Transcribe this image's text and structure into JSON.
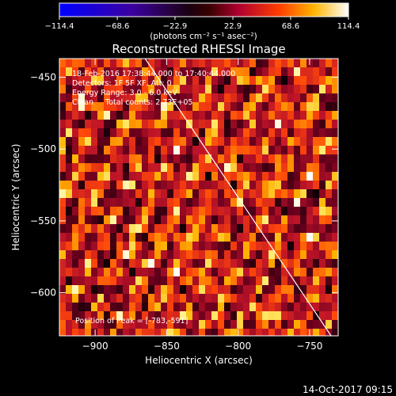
{
  "chart_data": {
    "type": "heatmap",
    "title": "Reconstructed RHESSI Image",
    "xlabel": "Heliocentric X (arcsec)",
    "ylabel": "Heliocentric Y (arcsec)",
    "xlim": [
      -925,
      -730
    ],
    "ylim": [
      -630,
      -437
    ],
    "x_ticks": [
      -900,
      -850,
      -800,
      -750
    ],
    "y_ticks": [
      -450,
      -500,
      -550,
      -600
    ],
    "x_tick_labels": [
      "−900",
      "−850",
      "−800",
      "−750"
    ],
    "y_tick_labels": [
      "−450",
      "−500",
      "−550",
      "−600"
    ],
    "colorbar": {
      "range": [
        -114.4,
        114.4
      ],
      "tick_values": [
        -114.4,
        -68.6,
        -22.9,
        22.9,
        68.6,
        114.4
      ],
      "tick_labels": [
        "−114.4",
        "−68.6",
        "−22.9",
        "22.9",
        "68.6",
        "114.4"
      ],
      "unit_label": "(photons cm⁻² s⁻¹ asec⁻²)",
      "colormap": "rhessi"
    },
    "annotations": [
      "18-Feb-2016 17:38:44.000 to 17:40:44.000",
      "Detectors: 1F 5F XF, Att: 0",
      "Energy Range: 3.0 - 6.0 keV",
      "Clean     Total counts: 2.73E+05"
    ],
    "peak_label": "Position of Peak = [-783,-591]",
    "limb_line": {
      "x1": -865,
      "y1": -437,
      "x2": -735,
      "y2": -630
    },
    "footer": "14-Oct-2017 09:15"
  }
}
